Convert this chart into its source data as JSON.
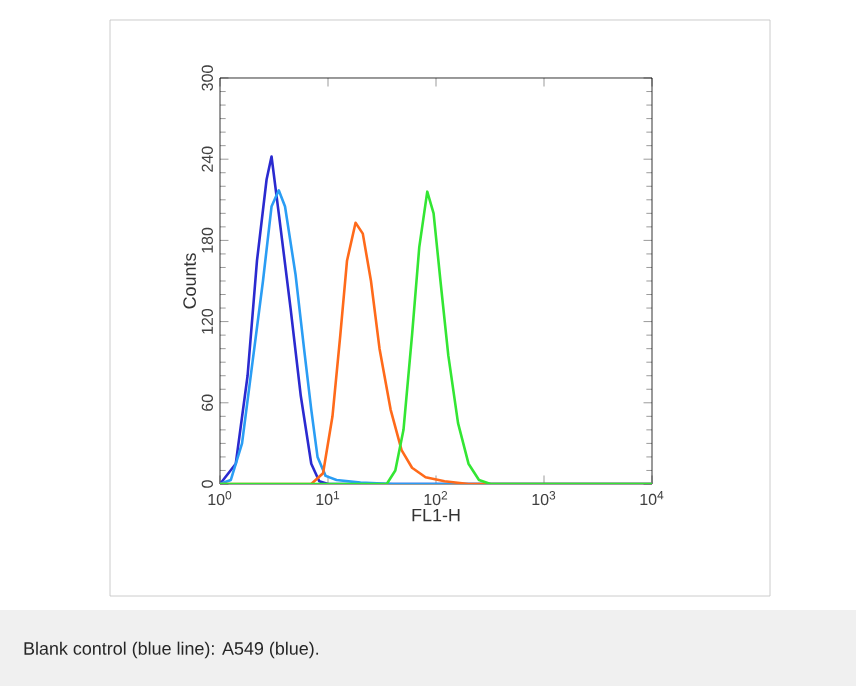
{
  "chart_data": {
    "type": "line",
    "xlabel": "FL1-H",
    "ylabel": "Counts",
    "log": "x",
    "xlim": [
      1,
      10000
    ],
    "ylim": [
      0,
      300
    ],
    "xticks": [
      {
        "value": 1,
        "label": "10$^{0}$"
      },
      {
        "value": 10,
        "label": "10$^{1}$"
      },
      {
        "value": 100,
        "label": "10$^{2}$"
      },
      {
        "value": 1000,
        "label": "10$^{3}$"
      },
      {
        "value": 10000,
        "label": "10$^{4}$"
      }
    ],
    "yticks": [
      0,
      60,
      120,
      180,
      240,
      300
    ],
    "grid": false,
    "line_style": "solid",
    "marker": "none",
    "annotations": [
      "Blank control (blue line): A549 (blue)."
    ],
    "series": [
      {
        "color": "#2a2ad0",
        "x": [
          1,
          1.4,
          1.8,
          2.2,
          2.7,
          3.0,
          3.5,
          4.5,
          5.6,
          7,
          8.3,
          10,
          10000
        ],
        "values": [
          0,
          15,
          80,
          165,
          225,
          242,
          200,
          130,
          65,
          15,
          2,
          0,
          0
        ]
      },
      {
        "color": "#2a9df4",
        "x": [
          1,
          1.26,
          1.6,
          2,
          2.5,
          3,
          3.5,
          4,
          5,
          6,
          7,
          8,
          9.5,
          12,
          20,
          40,
          10000
        ],
        "values": [
          0,
          3,
          30,
          90,
          150,
          205,
          217,
          205,
          155,
          100,
          55,
          20,
          6,
          3,
          1,
          0,
          0
        ]
      },
      {
        "color": "#ff6a1a",
        "x": [
          1,
          7,
          9,
          11,
          13,
          15,
          18,
          21,
          25,
          30,
          38,
          48,
          60,
          80,
          120,
          200,
          10000
        ],
        "values": [
          0,
          0,
          8,
          50,
          110,
          165,
          193,
          185,
          150,
          100,
          55,
          25,
          12,
          5,
          2,
          0,
          0
        ]
      },
      {
        "color": "#33e633",
        "x": [
          1,
          35,
          42,
          50,
          60,
          70,
          83,
          95,
          110,
          130,
          160,
          200,
          250,
          320,
          10000
        ],
        "values": [
          0,
          0,
          10,
          40,
          110,
          175,
          216,
          200,
          150,
          95,
          45,
          15,
          3,
          0,
          0
        ]
      }
    ]
  }
}
